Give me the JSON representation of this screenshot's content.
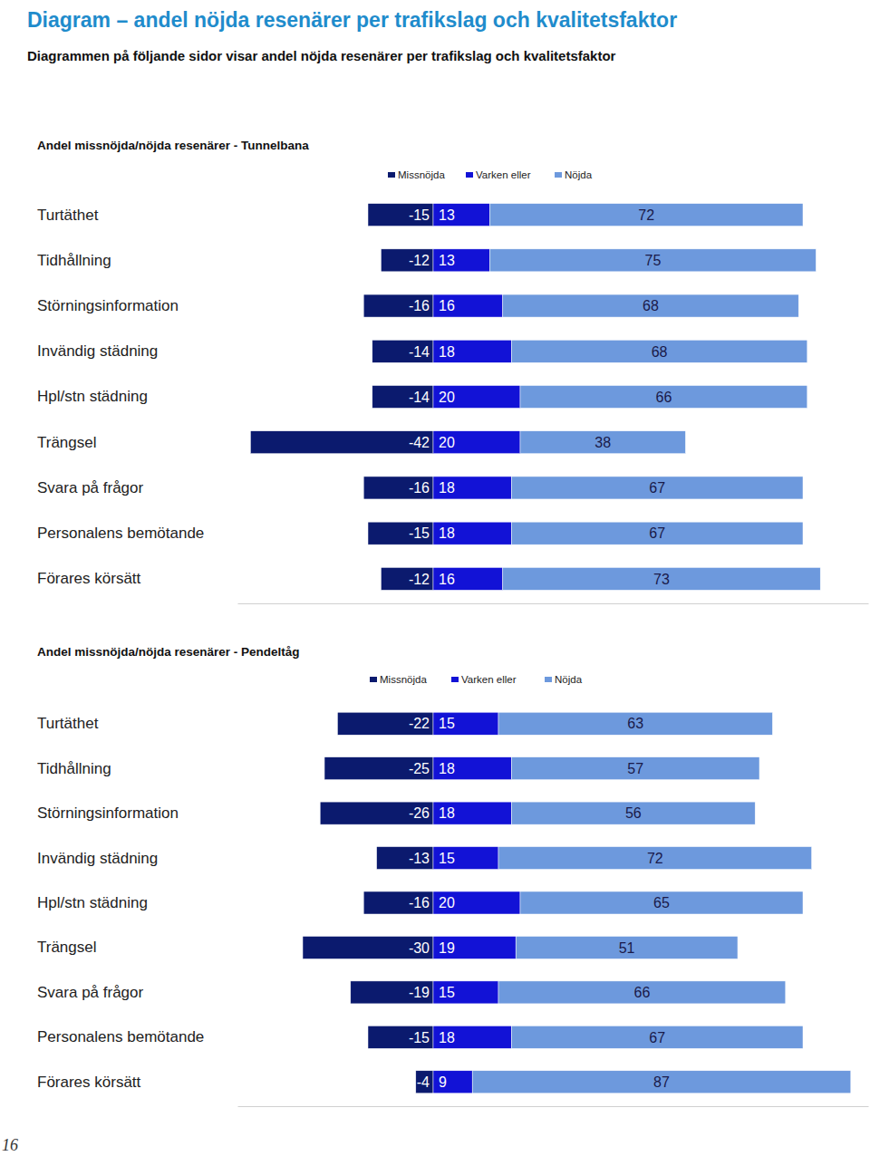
{
  "header": {
    "title": "Diagram – andel nöjda resenärer per trafikslag och kvalitetsfaktor",
    "subtitle": "Diagrammen på följande sidor visar andel nöjda resenärer per trafikslag och kvalitetsfaktor"
  },
  "chart_data": [
    {
      "type": "bar",
      "orientation": "horizontal",
      "stacked": true,
      "data_labels": true,
      "tick_labels": "y",
      "title": "Andel missnöjda/nöjda resenärer - Tunnelbana",
      "categories": [
        "Turtäthet",
        "Tidhållning",
        "Störningsinformation",
        "Invändig städning",
        "Hpl/stn städning",
        "Trängsel",
        "Svara på frågor",
        "Personalens bemötande",
        "Förares körsätt"
      ],
      "xlim": [
        -45,
        100
      ],
      "xticks": [],
      "series": [
        {
          "name": "Missnöjda",
          "color": "#0b1a6e",
          "values": [
            -15,
            -12,
            -16,
            -14,
            -14,
            -42,
            -16,
            -15,
            -12
          ]
        },
        {
          "name": "Varken eller",
          "color": "#1212d6",
          "values": [
            13,
            13,
            16,
            18,
            20,
            20,
            18,
            18,
            16
          ]
        },
        {
          "name": "Nöjda",
          "color": "#6d99dd",
          "values": [
            72,
            75,
            68,
            68,
            66,
            38,
            67,
            67,
            73
          ]
        }
      ]
    },
    {
      "type": "bar",
      "orientation": "horizontal",
      "stacked": true,
      "data_labels": true,
      "tick_labels": "y",
      "title": "Andel missnöjda/nöjda resenärer - Pendeltåg",
      "categories": [
        "Turtäthet",
        "Tidhållning",
        "Störningsinformation",
        "Invändig städning",
        "Hpl/stn städning",
        "Trängsel",
        "Svara på frågor",
        "Personalens bemötande",
        "Förares körsätt"
      ],
      "xlim": [
        -45,
        100
      ],
      "xticks": [],
      "series": [
        {
          "name": "Missnöjda",
          "color": "#0b1a6e",
          "values": [
            -22,
            -25,
            -26,
            -13,
            -16,
            -30,
            -19,
            -15,
            -4
          ]
        },
        {
          "name": "Varken eller",
          "color": "#1212d6",
          "values": [
            15,
            18,
            18,
            15,
            20,
            19,
            15,
            18,
            9
          ]
        },
        {
          "name": "Nöjda",
          "color": "#6d99dd",
          "values": [
            63,
            57,
            56,
            72,
            65,
            51,
            66,
            67,
            87
          ]
        }
      ]
    }
  ],
  "footer": {
    "page_number": 16
  }
}
